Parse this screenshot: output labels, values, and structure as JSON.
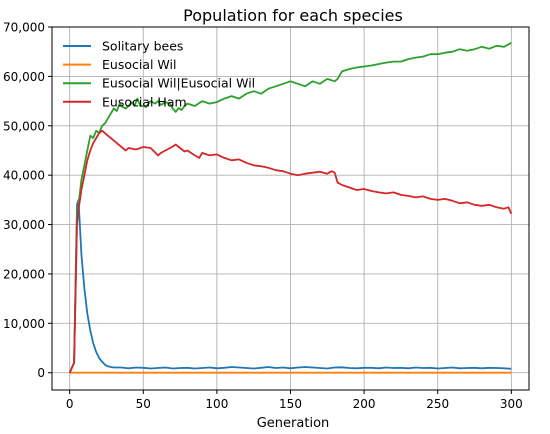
{
  "chart_data": {
    "type": "line",
    "title": "Population for each species",
    "xlabel": "Generation",
    "ylabel": "",
    "xlim": [
      -12,
      312
    ],
    "ylim": [
      -3500,
      70000
    ],
    "xticks": [
      0,
      50,
      100,
      150,
      200,
      250,
      300
    ],
    "xtick_labels": [
      "0",
      "50",
      "100",
      "150",
      "200",
      "250",
      "300"
    ],
    "yticks": [
      0,
      10000,
      20000,
      30000,
      40000,
      50000,
      60000,
      70000
    ],
    "ytick_labels": [
      "0",
      "10,000",
      "20,000",
      "30,000",
      "40,000",
      "50,000",
      "60,000",
      "70,000"
    ],
    "grid": true,
    "legend_position": "top-left",
    "series": [
      {
        "name": "Solitary bees",
        "color": "#1f77b4",
        "x": [
          0,
          3,
          5,
          6,
          8,
          10,
          12,
          14,
          16,
          18,
          20,
          22,
          24,
          26,
          28,
          30,
          35,
          40,
          45,
          50,
          55,
          60,
          65,
          70,
          75,
          80,
          85,
          90,
          95,
          100,
          105,
          110,
          115,
          120,
          125,
          130,
          135,
          140,
          145,
          150,
          155,
          160,
          165,
          170,
          175,
          180,
          185,
          190,
          195,
          200,
          205,
          210,
          215,
          220,
          225,
          230,
          235,
          240,
          245,
          250,
          255,
          260,
          265,
          270,
          275,
          280,
          285,
          290,
          295,
          300
        ],
        "y": [
          0,
          2000,
          34000,
          35000,
          24000,
          17000,
          12000,
          8500,
          6000,
          4200,
          3000,
          2200,
          1600,
          1300,
          1150,
          1050,
          1050,
          900,
          1050,
          1000,
          850,
          950,
          1050,
          850,
          950,
          1000,
          850,
          950,
          1050,
          900,
          1000,
          1150,
          1050,
          950,
          850,
          1000,
          1150,
          950,
          1050,
          900,
          1050,
          1150,
          1050,
          950,
          850,
          1050,
          1100,
          950,
          900,
          1000,
          1000,
          900,
          1050,
          950,
          1000,
          900,
          1050,
          950,
          1000,
          850,
          950,
          1050,
          900,
          950,
          1000,
          900,
          1000,
          950,
          900,
          800
        ]
      },
      {
        "name": "Eusocial Wil",
        "color": "#ff7f0e",
        "x": [
          0,
          300
        ],
        "y": [
          0,
          0
        ]
      },
      {
        "name": "Eusocial Wil|Eusocial Wil",
        "color": "#2ca02c",
        "x": [
          0,
          3,
          5,
          6,
          8,
          10,
          12,
          14,
          16,
          18,
          20,
          22,
          24,
          26,
          28,
          30,
          32,
          34,
          36,
          38,
          40,
          42,
          44,
          46,
          48,
          50,
          52,
          55,
          58,
          60,
          62,
          65,
          68,
          70,
          72,
          74,
          76,
          78,
          80,
          85,
          90,
          95,
          100,
          105,
          110,
          115,
          120,
          125,
          130,
          135,
          140,
          145,
          150,
          155,
          160,
          165,
          170,
          175,
          180,
          182,
          185,
          190,
          195,
          200,
          205,
          210,
          215,
          220,
          225,
          230,
          235,
          240,
          245,
          250,
          255,
          260,
          265,
          270,
          275,
          280,
          285,
          290,
          295,
          300
        ],
        "y": [
          0,
          2000,
          32000,
          34000,
          39000,
          42000,
          45000,
          48000,
          47500,
          49000,
          48500,
          50000,
          50500,
          51500,
          52500,
          53500,
          53000,
          54500,
          53800,
          53500,
          54000,
          54800,
          54000,
          55500,
          54000,
          54000,
          53800,
          55000,
          54500,
          55000,
          54200,
          54800,
          54500,
          53500,
          52800,
          53600,
          53200,
          54000,
          54500,
          54000,
          55000,
          54500,
          54800,
          55500,
          56000,
          55500,
          56500,
          57000,
          56500,
          57500,
          58000,
          58500,
          59000,
          58500,
          58000,
          59000,
          58500,
          59500,
          59000,
          59500,
          61000,
          61500,
          61800,
          62000,
          62200,
          62500,
          62800,
          63000,
          63000,
          63500,
          63800,
          64000,
          64500,
          64500,
          64800,
          65000,
          65500,
          65200,
          65500,
          66000,
          65600,
          66200,
          66000,
          66800
        ]
      },
      {
        "name": "Eusocial Ham",
        "color": "#d62728",
        "x": [
          0,
          3,
          5,
          6,
          8,
          10,
          12,
          14,
          16,
          18,
          20,
          22,
          24,
          26,
          28,
          30,
          32,
          34,
          36,
          38,
          40,
          45,
          50,
          55,
          60,
          62,
          65,
          70,
          72,
          75,
          78,
          80,
          85,
          88,
          90,
          95,
          100,
          105,
          110,
          115,
          120,
          125,
          130,
          135,
          140,
          145,
          150,
          155,
          160,
          165,
          170,
          175,
          178,
          180,
          182,
          185,
          190,
          195,
          200,
          205,
          210,
          215,
          220,
          225,
          230,
          235,
          240,
          245,
          250,
          255,
          260,
          265,
          270,
          275,
          280,
          285,
          290,
          295,
          298,
          300
        ],
        "y": [
          0,
          2000,
          30000,
          33000,
          37000,
          40000,
          43000,
          45000,
          46500,
          47500,
          48500,
          49000,
          48500,
          48000,
          47500,
          47000,
          46500,
          46000,
          45500,
          45000,
          45500,
          45200,
          45700,
          45500,
          44000,
          44500,
          45000,
          45800,
          46200,
          45500,
          44800,
          45000,
          44000,
          43500,
          44500,
          44000,
          44200,
          43500,
          43000,
          43200,
          42500,
          42000,
          41800,
          41500,
          41000,
          40800,
          40300,
          40000,
          40300,
          40500,
          40700,
          40300,
          40800,
          40500,
          38500,
          38000,
          37500,
          37000,
          37200,
          36800,
          36500,
          36300,
          36500,
          36000,
          35800,
          35500,
          35700,
          35200,
          35000,
          35200,
          34800,
          34300,
          34500,
          34000,
          33800,
          34000,
          33500,
          33200,
          33500,
          32200
        ]
      }
    ]
  }
}
